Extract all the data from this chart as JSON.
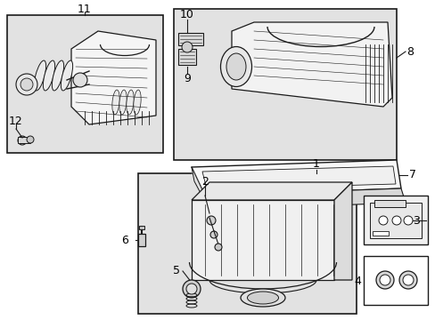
{
  "bg_color": "#ffffff",
  "line_color": "#1a1a1a",
  "shade_color": "#e2e2e2",
  "fig_width": 4.89,
  "fig_height": 3.6,
  "dpi": 100
}
